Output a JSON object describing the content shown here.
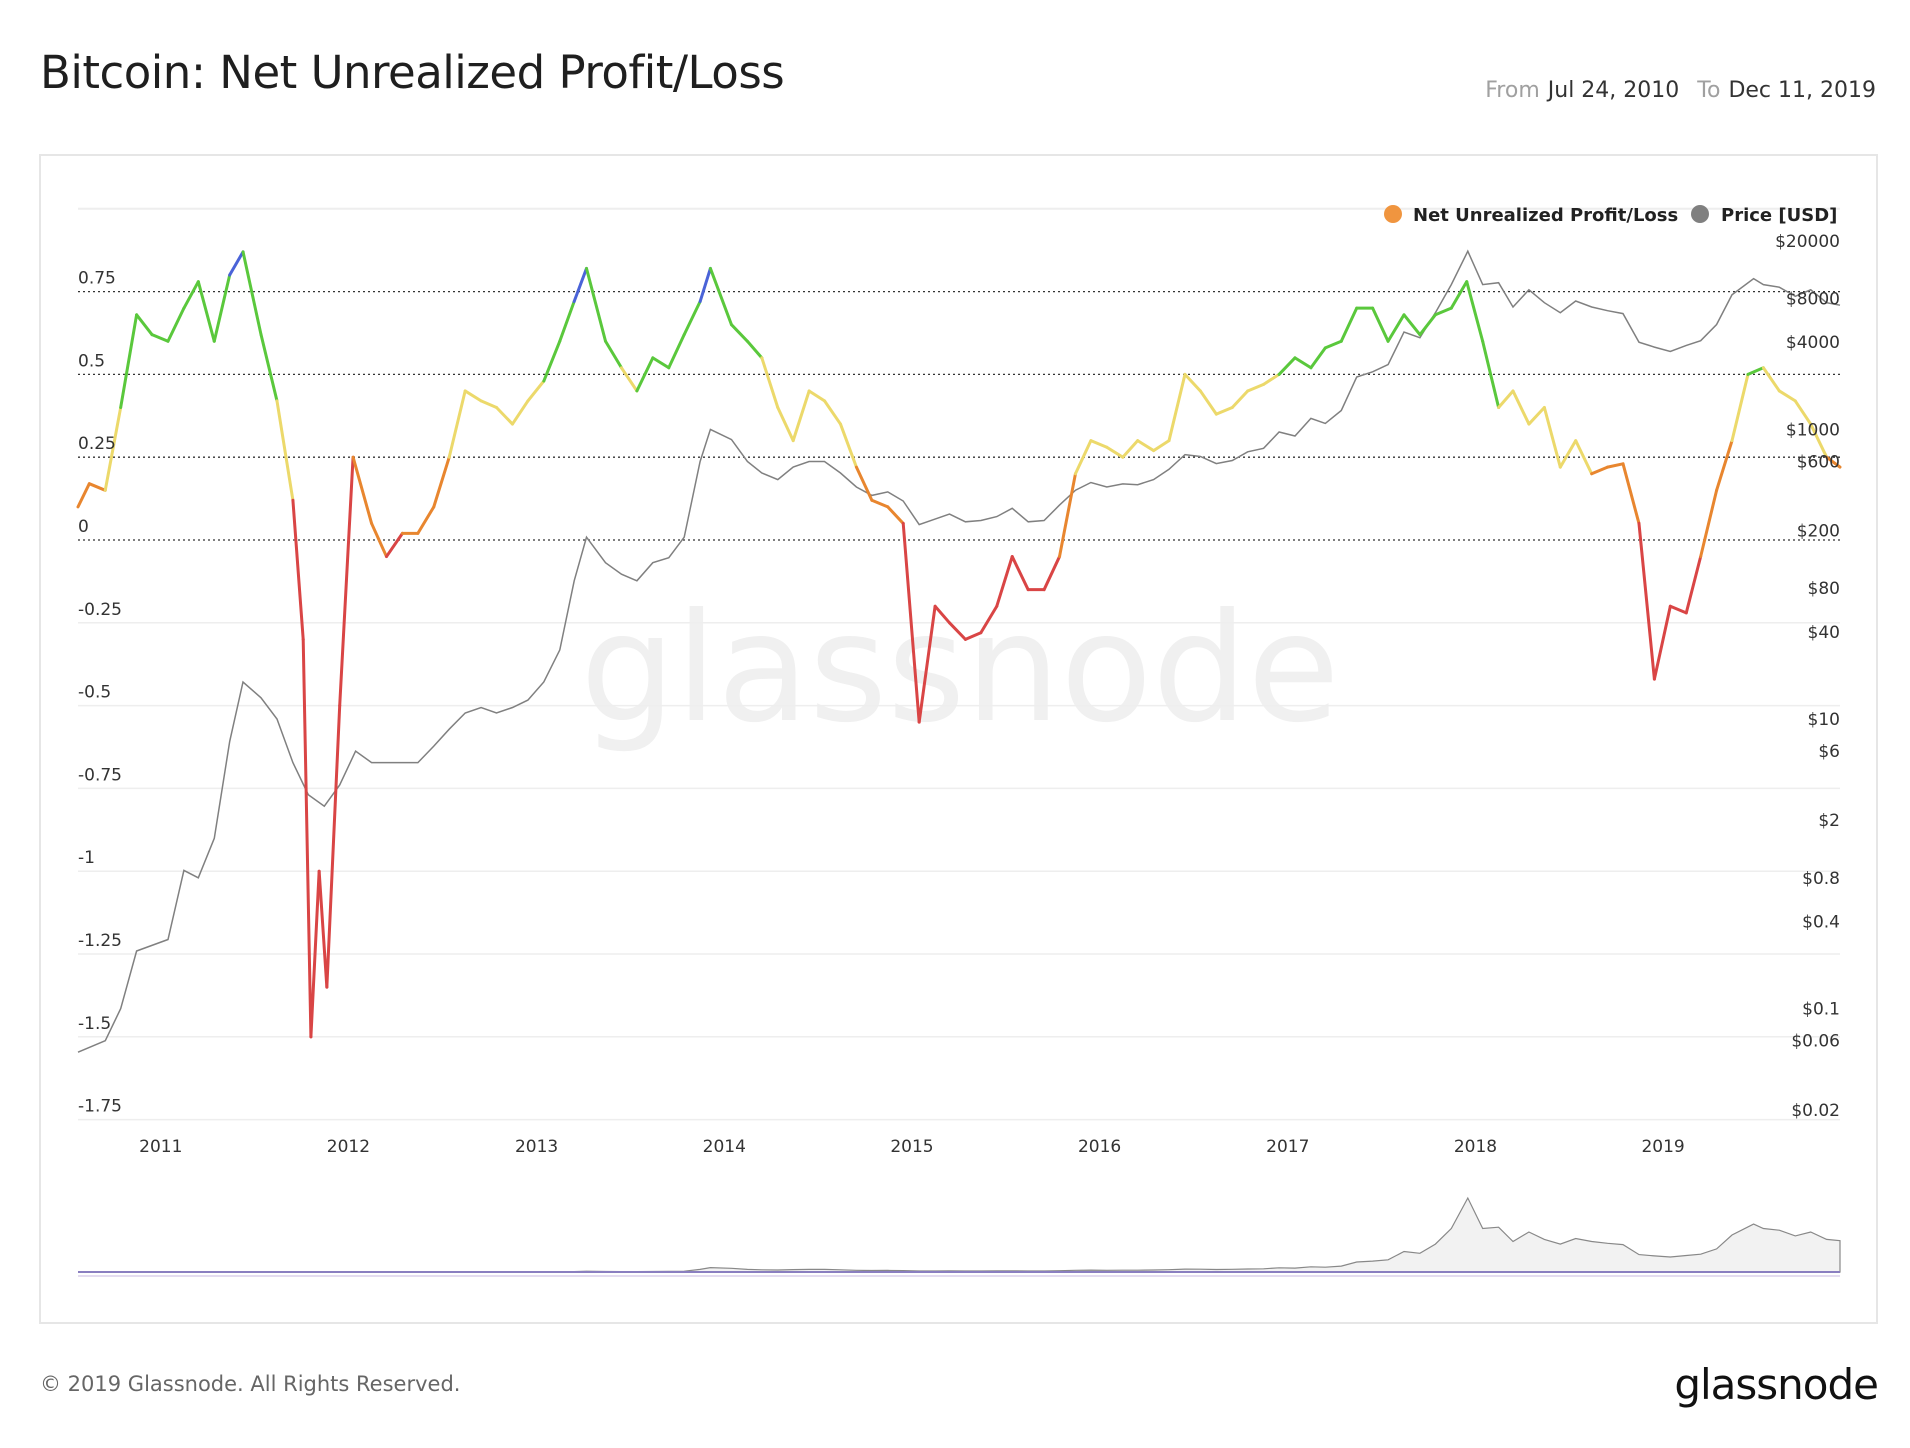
{
  "header": {
    "title": "Bitcoin: Net Unrealized Profit/Loss",
    "from_label": "From",
    "from_date": "Jul 24, 2010",
    "to_label": "To",
    "to_date": "Dec 11, 2019"
  },
  "footer": {
    "copyright": "© 2019 Glassnode. All Rights Reserved.",
    "logo": "glassnode"
  },
  "watermark": "glassnode",
  "colors": {
    "nupl_legend": "#f0953f",
    "price": "#808080",
    "band_capitulation": "#d94545",
    "band_hope_fear": "#e8862f",
    "band_optimism_anxiety": "#ecd96b",
    "band_belief_denial": "#5ac83c",
    "band_euphoria_greed": "#4a63d8"
  },
  "chart_data": {
    "type": "line",
    "x_range": [
      "2010-07-24",
      "2019-12-11"
    ],
    "x_ticks": [
      "2011",
      "2012",
      "2013",
      "2014",
      "2015",
      "2016",
      "2017",
      "2018",
      "2019"
    ],
    "legend": {
      "placement": "top-right",
      "entries": [
        "Net Unrealized Profit/Loss",
        "Price [USD]"
      ]
    },
    "y_left": {
      "range": [
        -1.75,
        1.0
      ],
      "ticks": [
        0.75,
        0.5,
        0.25,
        0,
        -0.25,
        -0.5,
        -0.75,
        -1,
        -1.25,
        -1.5,
        -1.75
      ],
      "tick_labels": [
        "0.75",
        "0.5",
        "0.25",
        "0",
        "-0.25",
        "-0.5",
        "-0.75",
        "-1",
        "-1.25",
        "-1.5",
        "-1.75"
      ],
      "dotted_lines": [
        0.75,
        0.5,
        0.25,
        0
      ]
    },
    "y_right": {
      "scale": "log",
      "range": [
        0.02,
        20000
      ],
      "ticks": [
        20000,
        8000,
        4000,
        1000,
        600,
        200,
        80,
        40,
        10,
        6,
        2,
        0.8,
        0.4,
        0.1,
        0.06,
        0.02
      ],
      "tick_labels": [
        "$20000",
        "$8000",
        "$4000",
        "$1000",
        "$600",
        "$200",
        "$80",
        "$40",
        "$10",
        "$6",
        "$2",
        "$0.8",
        "$0.4",
        "$0.1",
        "$0.06",
        "$0.02"
      ]
    },
    "series": [
      {
        "name": "Net Unrealized Profit/Loss",
        "axis": "left",
        "color_bands": [
          [
            -10,
            0,
            "#d94545"
          ],
          [
            0,
            0.25,
            "#e8862f"
          ],
          [
            0.25,
            0.5,
            "#ecd96b"
          ],
          [
            0.5,
            0.75,
            "#5ac83c"
          ],
          [
            0.75,
            10,
            "#4a63d8"
          ]
        ],
        "x": [
          "2010-07-24",
          "2010-08-15",
          "2010-09-15",
          "2010-10-15",
          "2010-11-15",
          "2010-12-15",
          "2011-01-15",
          "2011-02-15",
          "2011-03-15",
          "2011-04-15",
          "2011-05-15",
          "2011-06-10",
          "2011-07-15",
          "2011-08-15",
          "2011-09-15",
          "2011-10-05",
          "2011-10-20",
          "2011-11-05",
          "2011-11-20",
          "2011-12-15",
          "2012-01-10",
          "2012-02-15",
          "2012-03-15",
          "2012-04-15",
          "2012-05-15",
          "2012-06-15",
          "2012-07-15",
          "2012-08-15",
          "2012-09-15",
          "2012-10-15",
          "2012-11-15",
          "2012-12-15",
          "2013-01-15",
          "2013-02-15",
          "2013-03-15",
          "2013-04-08",
          "2013-05-15",
          "2013-06-15",
          "2013-07-15",
          "2013-08-15",
          "2013-09-15",
          "2013-10-15",
          "2013-11-15",
          "2013-12-05",
          "2014-01-15",
          "2014-02-15",
          "2014-03-15",
          "2014-04-15",
          "2014-05-15",
          "2014-06-15",
          "2014-07-15",
          "2014-08-15",
          "2014-09-15",
          "2014-10-15",
          "2014-11-15",
          "2014-12-15",
          "2015-01-15",
          "2015-02-15",
          "2015-03-15",
          "2015-04-15",
          "2015-05-15",
          "2015-06-15",
          "2015-07-15",
          "2015-08-15",
          "2015-09-15",
          "2015-10-15",
          "2015-11-15",
          "2015-12-15",
          "2016-01-15",
          "2016-02-15",
          "2016-03-15",
          "2016-04-15",
          "2016-05-15",
          "2016-06-15",
          "2016-07-15",
          "2016-08-15",
          "2016-09-15",
          "2016-10-15",
          "2016-11-15",
          "2016-12-15",
          "2017-01-15",
          "2017-02-15",
          "2017-03-15",
          "2017-04-15",
          "2017-05-15",
          "2017-06-15",
          "2017-07-15",
          "2017-08-15",
          "2017-09-15",
          "2017-10-15",
          "2017-11-15",
          "2017-12-15",
          "2018-01-15",
          "2018-02-15",
          "2018-03-15",
          "2018-04-15",
          "2018-05-15",
          "2018-06-15",
          "2018-07-15",
          "2018-08-15",
          "2018-09-15",
          "2018-10-15",
          "2018-11-15",
          "2018-12-15",
          "2019-01-15",
          "2019-02-15",
          "2019-03-15",
          "2019-04-15",
          "2019-05-15",
          "2019-06-15",
          "2019-07-15",
          "2019-08-15",
          "2019-09-15",
          "2019-10-15",
          "2019-11-15",
          "2019-12-11"
        ],
        "y": [
          0.1,
          0.17,
          0.15,
          0.4,
          0.68,
          0.62,
          0.6,
          0.7,
          0.78,
          0.6,
          0.8,
          0.87,
          0.62,
          0.42,
          0.12,
          -0.3,
          -1.5,
          -1.0,
          -1.35,
          -0.5,
          0.25,
          0.05,
          -0.05,
          0.02,
          0.02,
          0.1,
          0.25,
          0.45,
          0.42,
          0.4,
          0.35,
          0.42,
          0.48,
          0.6,
          0.72,
          0.82,
          0.6,
          0.52,
          0.45,
          0.55,
          0.52,
          0.62,
          0.72,
          0.82,
          0.65,
          0.6,
          0.55,
          0.4,
          0.3,
          0.45,
          0.42,
          0.35,
          0.22,
          0.12,
          0.1,
          0.05,
          -0.55,
          -0.2,
          -0.25,
          -0.3,
          -0.28,
          -0.2,
          -0.05,
          -0.15,
          -0.15,
          -0.05,
          0.2,
          0.3,
          0.28,
          0.25,
          0.3,
          0.27,
          0.3,
          0.5,
          0.45,
          0.38,
          0.4,
          0.45,
          0.47,
          0.5,
          0.55,
          0.52,
          0.58,
          0.6,
          0.7,
          0.7,
          0.6,
          0.68,
          0.62,
          0.68,
          0.7,
          0.78,
          0.6,
          0.4,
          0.45,
          0.35,
          0.4,
          0.22,
          0.3,
          0.2,
          0.22,
          0.23,
          0.05,
          -0.42,
          -0.2,
          -0.22,
          -0.05,
          0.15,
          0.3,
          0.5,
          0.52,
          0.45,
          0.42,
          0.35,
          0.25,
          0.22
        ]
      },
      {
        "name": "Price [USD]",
        "axis": "right",
        "x": [
          "2010-07-24",
          "2010-09-15",
          "2010-10-15",
          "2010-11-15",
          "2011-01-15",
          "2011-02-15",
          "2011-03-15",
          "2011-04-15",
          "2011-05-15",
          "2011-06-10",
          "2011-07-15",
          "2011-08-15",
          "2011-09-15",
          "2011-10-15",
          "2011-11-15",
          "2011-12-15",
          "2012-01-15",
          "2012-02-15",
          "2012-03-15",
          "2012-04-15",
          "2012-05-15",
          "2012-06-15",
          "2012-07-15",
          "2012-08-15",
          "2012-09-15",
          "2012-10-15",
          "2012-11-15",
          "2012-12-15",
          "2013-01-15",
          "2013-02-15",
          "2013-03-15",
          "2013-04-08",
          "2013-05-15",
          "2013-06-15",
          "2013-07-15",
          "2013-08-15",
          "2013-09-15",
          "2013-10-15",
          "2013-11-15",
          "2013-12-05",
          "2014-01-15",
          "2014-02-15",
          "2014-03-15",
          "2014-04-15",
          "2014-05-15",
          "2014-06-15",
          "2014-07-15",
          "2014-08-15",
          "2014-09-15",
          "2014-10-15",
          "2014-11-15",
          "2014-12-15",
          "2015-01-15",
          "2015-02-15",
          "2015-03-15",
          "2015-04-15",
          "2015-05-15",
          "2015-06-15",
          "2015-07-15",
          "2015-08-15",
          "2015-09-15",
          "2015-10-15",
          "2015-11-15",
          "2015-12-15",
          "2016-01-15",
          "2016-02-15",
          "2016-03-15",
          "2016-04-15",
          "2016-05-15",
          "2016-06-15",
          "2016-07-15",
          "2016-08-15",
          "2016-09-15",
          "2016-10-15",
          "2016-11-15",
          "2016-12-15",
          "2017-01-15",
          "2017-02-15",
          "2017-03-15",
          "2017-04-15",
          "2017-05-15",
          "2017-06-15",
          "2017-07-15",
          "2017-08-15",
          "2017-09-15",
          "2017-10-15",
          "2017-11-15",
          "2017-12-17",
          "2018-01-15",
          "2018-02-15",
          "2018-03-15",
          "2018-04-15",
          "2018-05-15",
          "2018-06-15",
          "2018-07-15",
          "2018-08-15",
          "2018-09-15",
          "2018-10-15",
          "2018-11-15",
          "2018-12-15",
          "2019-01-15",
          "2019-02-15",
          "2019-03-15",
          "2019-04-15",
          "2019-05-15",
          "2019-06-26",
          "2019-07-15",
          "2019-08-15",
          "2019-09-15",
          "2019-10-15",
          "2019-11-15",
          "2019-12-11"
        ],
        "y": [
          0.05,
          0.06,
          0.1,
          0.25,
          0.3,
          0.9,
          0.8,
          1.5,
          7,
          18,
          14,
          10,
          5,
          3,
          2.5,
          3.5,
          6,
          5,
          5,
          5,
          5,
          6.5,
          8.5,
          11,
          12,
          11,
          12,
          13.5,
          18,
          30,
          90,
          180,
          120,
          100,
          90,
          120,
          130,
          180,
          600,
          1000,
          850,
          600,
          500,
          450,
          550,
          600,
          600,
          500,
          400,
          350,
          370,
          320,
          220,
          240,
          260,
          230,
          235,
          250,
          285,
          230,
          235,
          300,
          380,
          430,
          400,
          420,
          415,
          450,
          530,
          670,
          650,
          580,
          610,
          700,
          740,
          960,
          900,
          1190,
          1100,
          1350,
          2300,
          2500,
          2800,
          4700,
          4300,
          6400,
          10000,
          17000,
          10000,
          10300,
          7000,
          9200,
          7500,
          6400,
          7700,
          7000,
          6600,
          6300,
          4000,
          3700,
          3450,
          3800,
          4100,
          5300,
          8500,
          11000,
          10000,
          9600,
          8300,
          9200,
          7500,
          7200
        ]
      }
    ],
    "navigator": {
      "series": "Price [USD]",
      "scale": "linear"
    }
  }
}
